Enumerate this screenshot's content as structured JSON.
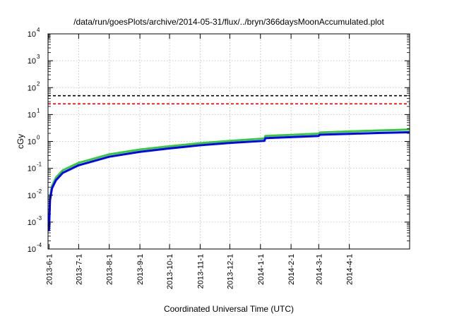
{
  "chart_data": {
    "type": "line",
    "title": "/data/run/goesPlots/archive/2014-05-31/flux/../bryn/366daysMoonAccumulated.plot",
    "xlabel": "Coordinated Universal Time (UTC)",
    "ylabel": "cGy",
    "yscale": "log",
    "xlim": [
      "2013-05-31",
      "2014-06-01"
    ],
    "ylim": [
      0.0001,
      10000
    ],
    "grid": true,
    "x_ticks": [
      "2013-6-1",
      "2013-7-1",
      "2013-8-1",
      "2013-9-1",
      "2013-10-1",
      "2013-11-1",
      "2013-12-1",
      "2014-1-1",
      "2014-2-1",
      "2014-3-1",
      "2014-4-1"
    ],
    "y_ticks": [
      {
        "value": 0.0001,
        "base": "10",
        "exp": "-4"
      },
      {
        "value": 0.001,
        "base": "10",
        "exp": "-3"
      },
      {
        "value": 0.01,
        "base": "10",
        "exp": "-2"
      },
      {
        "value": 0.1,
        "base": "10",
        "exp": "-1"
      },
      {
        "value": 1,
        "base": "10",
        "exp": "0"
      },
      {
        "value": 10,
        "base": "10",
        "exp": "1"
      },
      {
        "value": 100,
        "base": "10",
        "exp": "2"
      },
      {
        "value": 1000,
        "base": "10",
        "exp": "3"
      },
      {
        "value": 10000,
        "base": "10",
        "exp": "4"
      }
    ],
    "reference_lines": [
      {
        "y": 50,
        "color": "#000000",
        "style": "dashed"
      },
      {
        "y": 25,
        "color": "#ff0000",
        "style": "dashed"
      }
    ],
    "series": [
      {
        "color": "#33cc33",
        "points": [
          [
            "2013-06-01",
            0.0006
          ],
          [
            "2013-06-02",
            0.008
          ],
          [
            "2013-06-04",
            0.022
          ],
          [
            "2013-06-08",
            0.045
          ],
          [
            "2013-06-15",
            0.085
          ],
          [
            "2013-07-01",
            0.16
          ],
          [
            "2013-08-01",
            0.33
          ],
          [
            "2013-09-01",
            0.5
          ],
          [
            "2013-10-01",
            0.66
          ],
          [
            "2013-11-01",
            0.86
          ],
          [
            "2013-12-01",
            1.05
          ],
          [
            "2014-01-05",
            1.28
          ],
          [
            "2014-01-06",
            1.6
          ],
          [
            "2014-02-01",
            1.75
          ],
          [
            "2014-03-01",
            1.95
          ],
          [
            "2014-03-02",
            2.15
          ],
          [
            "2014-04-01",
            2.35
          ],
          [
            "2014-05-01",
            2.55
          ],
          [
            "2014-05-31",
            2.75
          ]
        ]
      },
      {
        "color": "#0000ff",
        "points": [
          [
            "2013-06-01",
            0.0005
          ],
          [
            "2013-06-02",
            0.0065
          ],
          [
            "2013-06-04",
            0.018
          ],
          [
            "2013-06-08",
            0.036
          ],
          [
            "2013-06-15",
            0.068
          ],
          [
            "2013-07-01",
            0.13
          ],
          [
            "2013-08-01",
            0.27
          ],
          [
            "2013-09-01",
            0.41
          ],
          [
            "2013-10-01",
            0.55
          ],
          [
            "2013-11-01",
            0.72
          ],
          [
            "2013-12-01",
            0.88
          ],
          [
            "2014-01-05",
            1.05
          ],
          [
            "2014-01-06",
            1.32
          ],
          [
            "2014-02-01",
            1.45
          ],
          [
            "2014-03-01",
            1.6
          ],
          [
            "2014-03-02",
            1.78
          ],
          [
            "2014-04-01",
            1.92
          ],
          [
            "2014-05-01",
            2.06
          ],
          [
            "2014-05-31",
            2.2
          ]
        ]
      }
    ]
  }
}
